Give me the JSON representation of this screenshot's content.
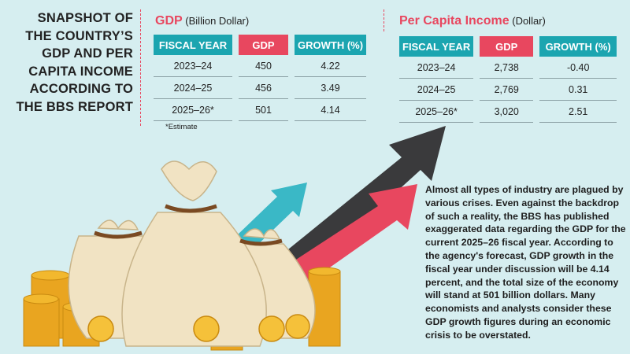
{
  "header": {
    "title_lines": [
      "SNAPSHOT OF",
      "THE COUNTRY’S",
      "GDP AND PER",
      "CAPITA INCOME",
      "ACCORDING TO",
      "THE BBS REPORT"
    ]
  },
  "gdp_table": {
    "title": "GDP",
    "unit": "(Billion Dollar)",
    "columns": [
      "FISCAL YEAR",
      "GDP",
      "GROWTH (%)"
    ],
    "rows": [
      [
        "2023–24",
        "450",
        "4.22"
      ],
      [
        "2024–25",
        "456",
        "3.49"
      ],
      [
        "2025–26*",
        "501",
        "4.14"
      ]
    ],
    "note": "*Estimate"
  },
  "per_capita_table": {
    "title": "Per Capita Income",
    "unit": "(Dollar)",
    "columns": [
      "FISCAL YEAR",
      "GDP",
      "GROWTH (%)"
    ],
    "rows": [
      [
        "2023–24",
        "2,738",
        "-0.40"
      ],
      [
        "2024–25",
        "2,769",
        "0.31"
      ],
      [
        "2025–26*",
        "3,020",
        "2.51"
      ]
    ]
  },
  "paragraph": "Almost all types of industry are plagued by various crises. Even against the backdrop of such a reality, the BBS has published exaggerated data regarding the GDP for the current 2025–26 fiscal year. According to the agency's forecast, GDP growth in the fiscal year under discussion will be 4.14 percent, and the total size of the economy will stand at 501 billion dollars. Many economists and analysts consider these GDP growth figures during an economic crisis to be overstated."
}
